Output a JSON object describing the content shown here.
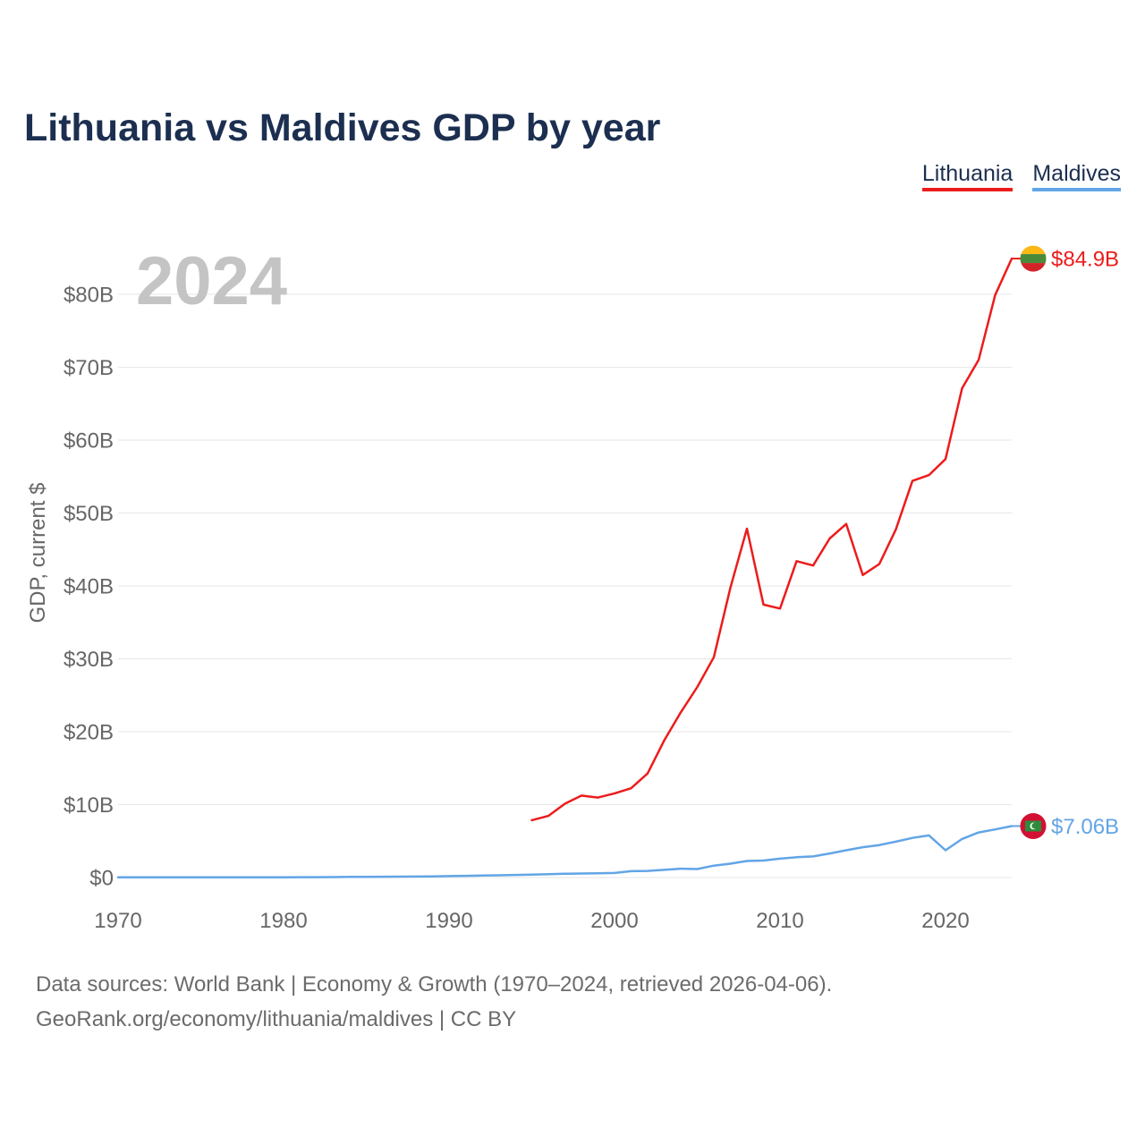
{
  "footer": {
    "source": "Data sources: World Bank | Economy & Growth (1970–2024, retrieved 2026-04-06).",
    "attribution": "GeoRank.org/economy/lithuania/maldives | CC BY"
  },
  "chart_data": {
    "type": "line",
    "title": "Lithuania vs Maldives GDP by year",
    "year_label": "2024",
    "xlabel": "",
    "ylabel": "GDP, current $",
    "xlim": [
      1970,
      2024
    ],
    "ylim": [
      0,
      85
    ],
    "grid": true,
    "x_ticks": [
      1970,
      1980,
      1990,
      2000,
      2010,
      2020
    ],
    "y_ticks_usd_billions": [
      0,
      10,
      20,
      30,
      40,
      50,
      60,
      70,
      80
    ],
    "y_tick_labels": [
      "$0",
      "$10B",
      "$20B",
      "$30B",
      "$40B",
      "$50B",
      "$60B",
      "$70B",
      "$80B"
    ],
    "x": [
      1970,
      1971,
      1972,
      1973,
      1974,
      1975,
      1976,
      1977,
      1978,
      1979,
      1980,
      1981,
      1982,
      1983,
      1984,
      1985,
      1986,
      1987,
      1988,
      1989,
      1990,
      1991,
      1992,
      1993,
      1994,
      1995,
      1996,
      1997,
      1998,
      1999,
      2000,
      2001,
      2002,
      2003,
      2004,
      2005,
      2006,
      2007,
      2008,
      2009,
      2010,
      2011,
      2012,
      2013,
      2014,
      2015,
      2016,
      2017,
      2018,
      2019,
      2020,
      2021,
      2022,
      2023,
      2024
    ],
    "series": [
      {
        "name": "Lithuania",
        "color": "#ec1c1c",
        "flag_icon": "lithuania-flag-icon",
        "end_label": "$84.9B",
        "values_usd_billions": [
          null,
          null,
          null,
          null,
          null,
          null,
          null,
          null,
          null,
          null,
          null,
          null,
          null,
          null,
          null,
          null,
          null,
          null,
          null,
          null,
          null,
          null,
          null,
          null,
          null,
          7.87,
          8.46,
          10.12,
          11.24,
          10.97,
          11.54,
          12.25,
          14.28,
          18.8,
          22.65,
          26.13,
          30.22,
          39.74,
          47.85,
          37.44,
          36.9,
          43.4,
          42.8,
          46.5,
          48.5,
          41.5,
          43.0,
          47.76,
          54.4,
          55.2,
          57.4,
          67.1,
          71.0,
          79.9,
          84.9
        ]
      },
      {
        "name": "Maldives",
        "color": "#62a5e6",
        "flag_icon": "maldives-flag-icon",
        "end_label": "$7.06B",
        "values_usd_billions": [
          0.02,
          0.02,
          0.02,
          0.02,
          0.03,
          0.02,
          0.02,
          0.02,
          0.03,
          0.03,
          0.04,
          0.05,
          0.05,
          0.06,
          0.09,
          0.1,
          0.11,
          0.12,
          0.13,
          0.16,
          0.2,
          0.23,
          0.27,
          0.31,
          0.36,
          0.41,
          0.46,
          0.52,
          0.55,
          0.59,
          0.62,
          0.87,
          0.91,
          1.05,
          1.22,
          1.16,
          1.63,
          1.9,
          2.27,
          2.33,
          2.59,
          2.79,
          2.89,
          3.3,
          3.74,
          4.16,
          4.46,
          4.92,
          5.44,
          5.78,
          3.74,
          5.29,
          6.18,
          6.6,
          7.06
        ]
      }
    ]
  }
}
